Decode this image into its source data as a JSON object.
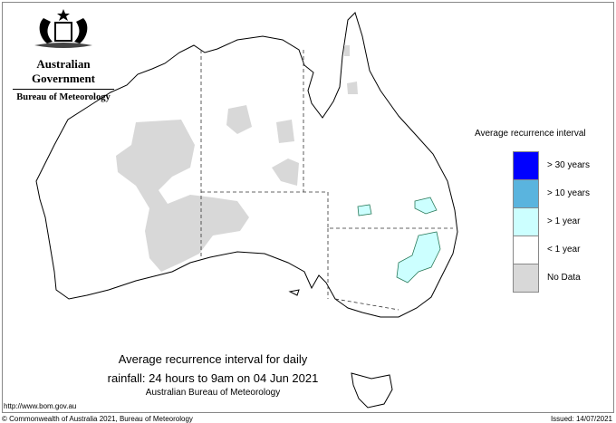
{
  "header": {
    "org": "Australian Government",
    "bureau": "Bureau of Meteorology",
    "logo": "commonwealth-coat-of-arms"
  },
  "legend": {
    "title": "Average recurrence interval",
    "items": [
      {
        "label": "> 30 years",
        "color": "#0000ff"
      },
      {
        "label": "> 10 years",
        "color": "#5ab4de"
      },
      {
        "label": "> 1 year",
        "color": "#ccffff"
      },
      {
        "label": "< 1 year",
        "color": "#ffffff"
      },
      {
        "label": "No Data",
        "color": "#d8d8d8"
      }
    ]
  },
  "map": {
    "title_line1": "Average recurrence interval for daily",
    "title_line2": "rainfall: 24 hours to 9am on 04 Jun 2021",
    "source": "Australian Bureau of Meteorology"
  },
  "footer": {
    "url": "http://www.bom.gov.au",
    "copyright": "© Commonwealth of Australia 2021, Bureau of Meteorology",
    "issued": "Issued: 14/07/2021"
  }
}
